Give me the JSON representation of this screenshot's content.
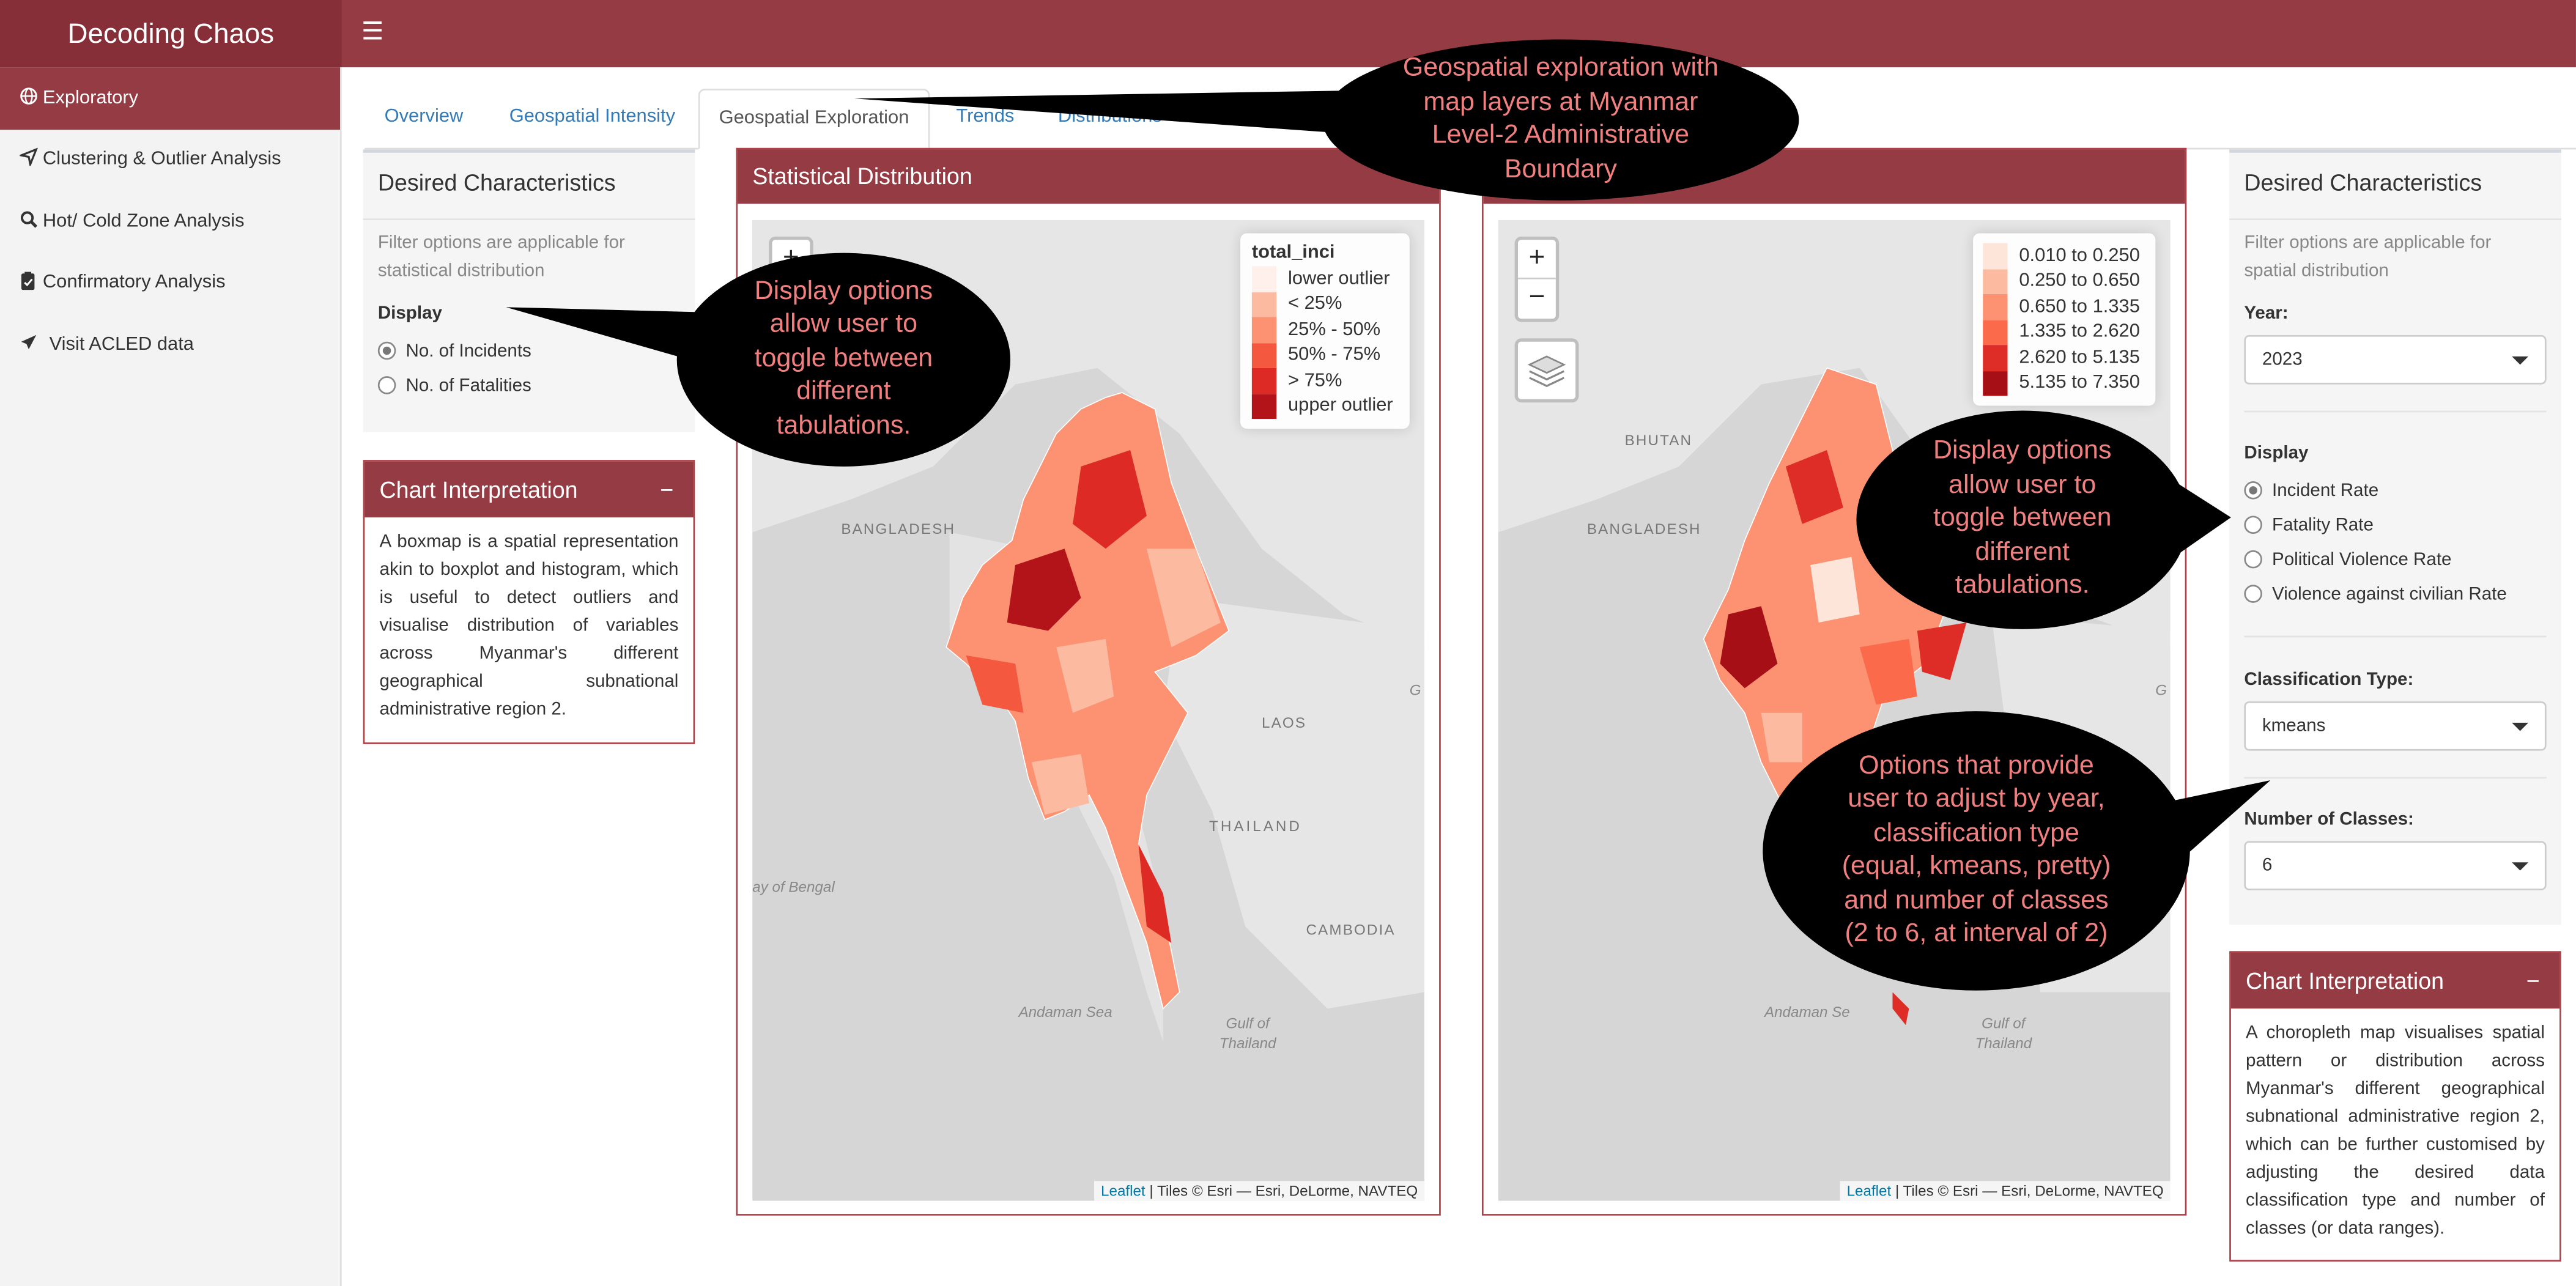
{
  "app": {
    "title": "Decoding Chaos"
  },
  "sidebar": {
    "items": [
      {
        "label": "Exploratory",
        "icon": "globe-icon"
      },
      {
        "label": "Clustering & Outlier Analysis",
        "icon": "location-arrow-icon"
      },
      {
        "label": "Hot/ Cold Zone Analysis",
        "icon": "magnifier-icon"
      },
      {
        "label": "Confirmatory Analysis",
        "icon": "clipboard-icon"
      },
      {
        "label": "Visit ACLED data",
        "icon": "send-icon"
      }
    ]
  },
  "tabs": [
    {
      "label": "Overview"
    },
    {
      "label": "Geospatial Intensity"
    },
    {
      "label": "Geospatial Exploration",
      "active": true
    },
    {
      "label": "Trends"
    },
    {
      "label": "Distributions"
    }
  ],
  "left_controls": {
    "title": "Desired Characteristics",
    "hint": "Filter options are applicable for statistical distribution",
    "display_label": "Display",
    "options": [
      "No. of Incidents",
      "No. of Fatalities"
    ],
    "selected": "No. of Incidents"
  },
  "left_interpretation": {
    "title": "Chart Interpretation",
    "collapse": "−",
    "text": "A boxmap is a spatial representation akin to boxplot and histogram, which is useful to detect outliers and visualise distribution of variables across Myanmar's different geographical subnational administrative region 2."
  },
  "stat_panel": {
    "title": "Statistical Distribution"
  },
  "map1": {
    "zoom_in": "+",
    "legend_title": "total_inci",
    "legend": [
      {
        "label": "lower outlier",
        "color": "#fff0ec"
      },
      {
        "label": "< 25%",
        "color": "#fcbba1"
      },
      {
        "label": "25% - 50%",
        "color": "#fc9272"
      },
      {
        "label": "50% - 75%",
        "color": "#f4593f"
      },
      {
        "label": "> 75%",
        "color": "#dd2a25"
      },
      {
        "label": "upper outlier",
        "color": "#b2141a"
      }
    ],
    "places": [
      "BANGLADESH",
      "LAOS",
      "THAILAND",
      "CAMBODIA"
    ],
    "water": [
      "ay of Bengal",
      "Andaman Sea",
      "Gulf of Thailand",
      "G"
    ],
    "attribution_link": "Leaflet",
    "attribution": "| Tiles © Esri — Esri, DeLorme, NAVTEQ"
  },
  "map2": {
    "zoom_in": "+",
    "zoom_out": "−",
    "layers_icon": "layers-icon",
    "legend": [
      {
        "label": "0.010 to 0.250",
        "color": "#fee5d9"
      },
      {
        "label": "0.250 to 0.650",
        "color": "#fcbba1"
      },
      {
        "label": "0.650 to 1.335",
        "color": "#fc9272"
      },
      {
        "label": "1.335 to 2.620",
        "color": "#fb6a4a"
      },
      {
        "label": "2.620 to 5.135",
        "color": "#de2d26"
      },
      {
        "label": "5.135 to 7.350",
        "color": "#a50f15"
      }
    ],
    "places": [
      "BHUTAN",
      "BANGLADESH"
    ],
    "water": [
      "Andaman Se",
      "Gulf of Thailand",
      "G"
    ],
    "attribution_link": "Leaflet",
    "attribution": "| Tiles © Esri — Esri, DeLorme, NAVTEQ"
  },
  "right_controls": {
    "title": "Desired Characteristics",
    "hint": "Filter options are applicable for spatial distribution",
    "year_label": "Year:",
    "year_value": "2023",
    "display_label": "Display",
    "display_options": [
      "Incident Rate",
      "Fatality Rate",
      "Political Violence Rate",
      "Violence against civilian Rate"
    ],
    "display_selected": "Incident Rate",
    "class_type_label": "Classification Type:",
    "class_type_value": "kmeans",
    "num_classes_label": "Number of Classes:",
    "num_classes_value": "6"
  },
  "right_interpretation": {
    "title": "Chart Interpretation",
    "collapse": "−",
    "text": "A choropleth map visualises spatial pattern or distribution across Myanmar's different geographical subnational administrative region 2, which can be further customised by adjusting the desired data classification type and number of classes (or data ranges)."
  },
  "callouts": [
    "Geospatial exploration with map layers at Myanmar Level-2 Administrative Boundary",
    "Display options allow user to toggle between different tabulations.",
    "Display options allow user to toggle between different tabulations.",
    "Options that provide user to adjust by year, classification type (equal, kmeans, pretty) and number of classes (2 to 6, at interval of 2)"
  ],
  "colors": {
    "brand": "#953b43",
    "brand_dark": "#862f38",
    "link": "#337ab7",
    "callout_text": "#f08080"
  }
}
